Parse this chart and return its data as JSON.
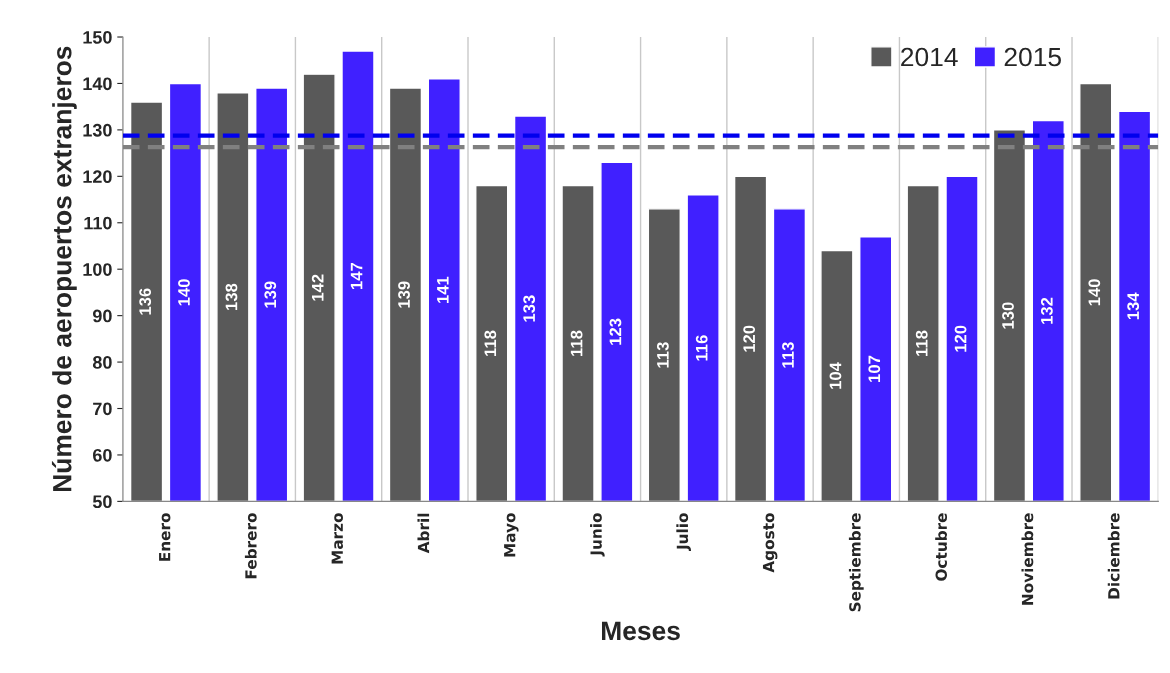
{
  "chart_data": {
    "type": "bar",
    "xlabel": "Meses",
    "ylabel": "Número de aeropuertos extranjeros",
    "categories": [
      "Enero",
      "Febrero",
      "Marzo",
      "Abril",
      "Mayo",
      "Junio",
      "Julio",
      "Agosto",
      "Septiembre",
      "Octubre",
      "Noviembre",
      "Diciembre"
    ],
    "series": [
      {
        "name": "2014",
        "color": "#595959",
        "values": [
          136,
          138,
          142,
          139,
          118,
          118,
          113,
          120,
          104,
          118,
          130,
          140
        ]
      },
      {
        "name": "2015",
        "color": "#4020ff",
        "values": [
          140,
          139,
          147,
          141,
          133,
          123,
          116,
          113,
          107,
          120,
          132,
          134
        ]
      }
    ],
    "ylim": [
      50,
      150
    ],
    "yticks": [
      50,
      60,
      70,
      80,
      90,
      100,
      110,
      120,
      130,
      140,
      150
    ],
    "ref_lines": [
      {
        "axis": "y",
        "value": 126.3,
        "color": "#808080",
        "line_style": "dashed"
      },
      {
        "axis": "y",
        "value": 128.75,
        "color": "#0000ee",
        "line_style": "dashed"
      }
    ],
    "data_labels": true,
    "legend": "top right",
    "grid": "x"
  }
}
